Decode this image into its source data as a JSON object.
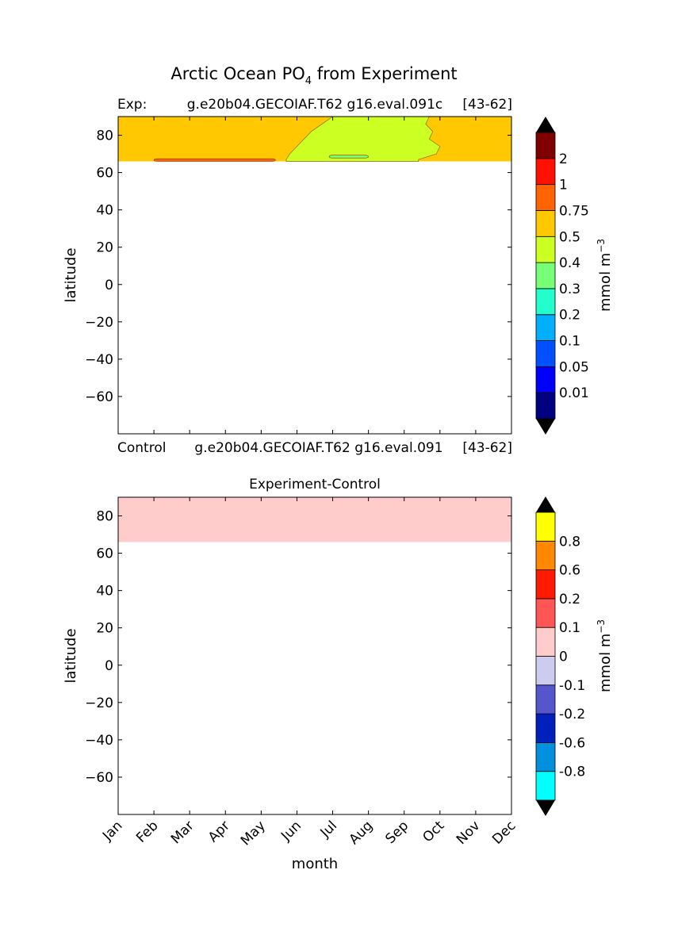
{
  "figure": {
    "title_main": "Arctic Ocean PO",
    "title_sub": "4",
    "title_tail": " from Experiment"
  },
  "chart_data": [
    {
      "type": "heatmap",
      "panel": "experiment",
      "title_left": "Exp:",
      "title_center": "g.e20b04.GECOIAF.T62 g16.eval.091c",
      "title_right": "[43-62]",
      "bottom_left": "Control",
      "bottom_center": "g.e20b04.GECOIAF.T62 g16.eval.091",
      "bottom_right": "[43-62]",
      "xlabel": "",
      "ylabel": "latitude",
      "ylim": [
        -80,
        90
      ],
      "xlim": [
        0,
        11
      ],
      "y_ticks": [
        80,
        60,
        40,
        20,
        0,
        -20,
        -40,
        -60
      ],
      "y_tick_labels": [
        "80",
        "60",
        "40",
        "20",
        "0",
        "−20",
        "−40",
        "−60"
      ],
      "data_lat_range": [
        66,
        90
      ],
      "months": [
        "Jan",
        "Feb",
        "Mar",
        "Apr",
        "May",
        "Jun",
        "Jul",
        "Aug",
        "Sep",
        "Oct",
        "Nov",
        "Dec"
      ],
      "fields": [
        {
          "level": "0.5-0.75",
          "color": "#ffc800",
          "region": "background"
        },
        {
          "level": "0.4-0.5",
          "color": "#ccff22",
          "region": "jun-sep",
          "boundary_month": [
            [
              90,
              6.0,
              8.7
            ],
            [
              86,
              5.7,
              8.6
            ],
            [
              82,
              5.4,
              8.8
            ],
            [
              78,
              5.2,
              8.7
            ],
            [
              74,
              5.0,
              9.0
            ],
            [
              70,
              4.8,
              8.9
            ],
            [
              67,
              4.7,
              8.4
            ]
          ]
        },
        {
          "level": "0.3-0.4",
          "color": "#77ff77",
          "region": "patch",
          "lat_range": [
            67.8,
            69.3
          ],
          "month_range": [
            5.9,
            7.0
          ]
        },
        {
          "level": "0.75-1",
          "color": "#ff6400",
          "region": "edge",
          "lat_range": [
            66,
            67.4
          ],
          "month_range": [
            1.0,
            4.4
          ]
        }
      ],
      "colorbar": {
        "label": "mmol m",
        "label_sup": "−3",
        "extend": "both",
        "tick_labels": [
          "0.01",
          "0.05",
          "0.1",
          "0.2",
          "0.3",
          "0.4",
          "0.5",
          "0.75",
          "1",
          "2"
        ],
        "colors": [
          "#000080",
          "#0000ff",
          "#0050ff",
          "#00b0ff",
          "#22ffcc",
          "#77ff77",
          "#ccff22",
          "#ffc800",
          "#ff6400",
          "#ff1000",
          "#800000"
        ],
        "under_color": "#000000",
        "over_color": "#000000"
      }
    },
    {
      "type": "heatmap",
      "panel": "difference",
      "title": "Experiment-Control",
      "xlabel": "month",
      "ylabel": "latitude",
      "ylim": [
        -80,
        90
      ],
      "xlim": [
        0,
        11
      ],
      "y_ticks": [
        80,
        60,
        40,
        20,
        0,
        -20,
        -40,
        -60
      ],
      "y_tick_labels": [
        "80",
        "60",
        "40",
        "20",
        "0",
        "−20",
        "−40",
        "−60"
      ],
      "x_tick_labels": [
        "Jan",
        "Feb",
        "Mar",
        "Apr",
        "May",
        "Jun",
        "Jul",
        "Aug",
        "Sep",
        "Oct",
        "Nov",
        "Dec"
      ],
      "data_lat_range": [
        66,
        90
      ],
      "fields": [
        {
          "level": "0-0.1",
          "color": "#ffcccc",
          "region": "background"
        }
      ],
      "colorbar": {
        "label": "mmol m",
        "label_sup": "−3",
        "extend": "both",
        "tick_labels": [
          "-0.8",
          "-0.6",
          "-0.2",
          "-0.1",
          "0",
          "0.1",
          "0.2",
          "0.6",
          "0.8"
        ],
        "colors": [
          "#00ffff",
          "#0090dd",
          "#0020bb",
          "#5555cc",
          "#ccccee",
          "#ffcccc",
          "#ff5555",
          "#ff1a00",
          "#ff8800",
          "#ffff00"
        ],
        "under_color": "#000000",
        "over_color": "#000000"
      }
    }
  ]
}
